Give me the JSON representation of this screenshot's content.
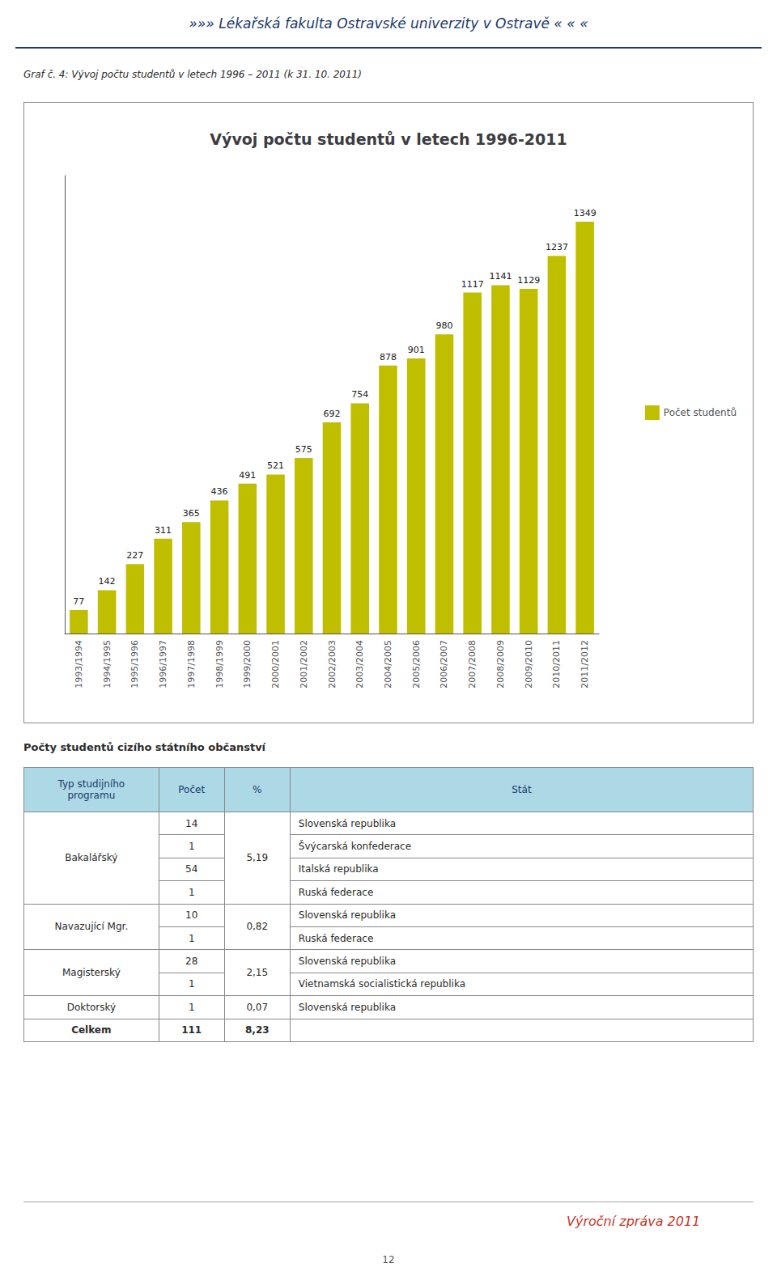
{
  "header_text": "»»»  Lékařská fakulta Ostravské univerzity v Ostravě « « «",
  "caption": "Graf  č. 4:  Vývoj počtu studentů v letech 1996 – 2011 (k 31. 10. 2011)",
  "chart_data": {
    "type": "bar",
    "title": "Vývoj počtu studentů v letech 1996-2011",
    "categories": [
      "1993/1994",
      "1994/1995",
      "1995/1996",
      "1996/1997",
      "1997/1998",
      "1998/1999",
      "1999/2000",
      "2000/2001",
      "2001/2002",
      "2002/2003",
      "2003/2004",
      "2004/2005",
      "2005/2006",
      "2006/2007",
      "2007/2008",
      "2008/2009",
      "2009/2010",
      "2010/2011",
      "2011/2012"
    ],
    "series": [
      {
        "name": "Počet studentů",
        "color": "#BFBF00",
        "values": [
          77,
          142,
          227,
          311,
          365,
          436,
          491,
          521,
          575,
          692,
          754,
          878,
          901,
          980,
          1117,
          1141,
          1129,
          1237,
          1349
        ]
      }
    ],
    "ylim": [
      0,
      1500
    ],
    "tick_labels": "x",
    "data_labels": true,
    "grid": false,
    "legend": "right"
  },
  "table": {
    "title": "Počty studentů cizího státního občanství",
    "columns": [
      "Typ studijního\nprogramu",
      "Počet",
      "%",
      "Stát"
    ],
    "groups": [
      {
        "typ": "Bakalářský",
        "pct": "5,19",
        "rows": [
          {
            "pocet": "14",
            "stat": "Slovenská republika"
          },
          {
            "pocet": "1",
            "stat": "Švýcarská konfederace"
          },
          {
            "pocet": "54",
            "stat": "Italská republika"
          },
          {
            "pocet": "1",
            "stat": "Ruská federace"
          }
        ]
      },
      {
        "typ": "Navazující Mgr.",
        "pct": "0,82",
        "rows": [
          {
            "pocet": "10",
            "stat": "Slovenská republika"
          },
          {
            "pocet": "1",
            "stat": "Ruská federace"
          }
        ]
      },
      {
        "typ": "Magisterský",
        "pct": "2,15",
        "rows": [
          {
            "pocet": "28",
            "stat": "Slovenská republika"
          },
          {
            "pocet": "1",
            "stat": "Vietnamská socialistická republika"
          }
        ]
      },
      {
        "typ": "Doktorský",
        "pct": "0,07",
        "rows": [
          {
            "pocet": "1",
            "stat": "Slovenská republika"
          }
        ]
      },
      {
        "typ": "Celkem",
        "pct": "8,23",
        "rows": [
          {
            "pocet": "111"
          }
        ]
      }
    ]
  },
  "footer_text": "Výroční zpráva 2011",
  "page_number": "12"
}
